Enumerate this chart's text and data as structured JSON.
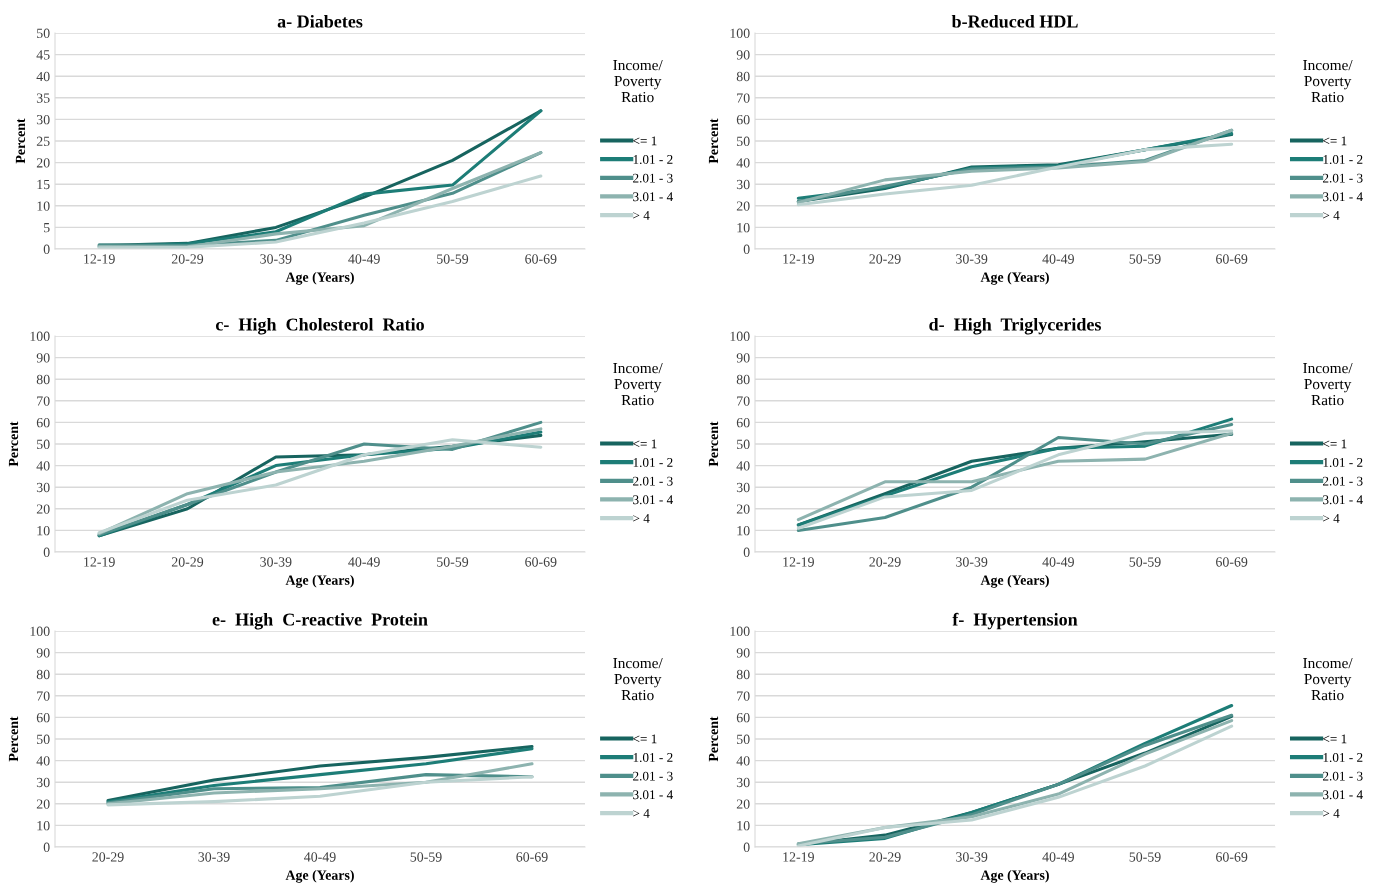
{
  "chart_data": [
    {
      "type": "line",
      "title": "a- Diabetes",
      "xlabel": "Age (Years)",
      "ylabel": "Percent",
      "legend_title": "Income/\nPoverty\nRatio",
      "legend": "right",
      "grid": "y",
      "categories": [
        "12-19",
        "20-29",
        "30-39",
        "40-49",
        "50-59",
        "60-69"
      ],
      "ylim": [
        0,
        50
      ],
      "yticks": [
        0,
        5,
        10,
        15,
        20,
        25,
        30,
        35,
        40,
        45,
        50
      ],
      "series": [
        {
          "name": "<= 1",
          "color": "#17645f",
          "values": [
            0.8,
            1.3,
            5,
            12,
            20.5,
            32
          ]
        },
        {
          "name": "1.01 - 2",
          "color": "#1d7d77",
          "values": [
            0.5,
            1.2,
            4,
            12.7,
            14.8,
            32
          ]
        },
        {
          "name": "2.01 - 3",
          "color": "#4f8f8b",
          "values": [
            1,
            0.8,
            2,
            7.8,
            12.9,
            22.3
          ]
        },
        {
          "name": "3.01 - 4",
          "color": "#8db3af",
          "values": [
            0.6,
            0.5,
            3.5,
            5.4,
            14,
            22.3
          ]
        },
        {
          "name": "> 4",
          "color": "#bdd3d1",
          "values": [
            0.3,
            0.4,
            1.6,
            6,
            11,
            16.9
          ]
        }
      ]
    },
    {
      "type": "line",
      "title": "b-Reduced HDL",
      "xlabel": "Age (Years)",
      "ylabel": "Percent",
      "legend_title": "Income/\nPoverty\nRatio",
      "legend": "right",
      "grid": "y",
      "categories": [
        "12-19",
        "20-29",
        "30-39",
        "40-49",
        "50-59",
        "60-69"
      ],
      "ylim": [
        0,
        100
      ],
      "yticks": [
        0,
        10,
        20,
        30,
        40,
        50,
        60,
        70,
        80,
        90,
        100
      ],
      "series": [
        {
          "name": "<= 1",
          "color": "#17645f",
          "values": [
            22,
            28,
            38,
            39,
            46,
            53
          ]
        },
        {
          "name": "1.01 - 2",
          "color": "#1d7d77",
          "values": [
            23.5,
            28.5,
            37.5,
            38.5,
            46,
            53.5
          ]
        },
        {
          "name": "2.01 - 3",
          "color": "#4f8f8b",
          "values": [
            22,
            29,
            37,
            38,
            41,
            55
          ]
        },
        {
          "name": "3.01 - 4",
          "color": "#8db3af",
          "values": [
            21.5,
            32,
            36,
            37.5,
            40.5,
            55
          ]
        },
        {
          "name": "> 4",
          "color": "#bdd3d1",
          "values": [
            20.5,
            25.5,
            29.5,
            38,
            46,
            48.5
          ]
        }
      ]
    },
    {
      "type": "line",
      "title": "c-  High  Cholesterol  Ratio",
      "xlabel": "Age (Years)",
      "ylabel": "Percent",
      "legend_title": "Income/\nPoverty\nRatio",
      "legend": "right",
      "grid": "y",
      "categories": [
        "12-19",
        "20-29",
        "30-39",
        "40-49",
        "50-59",
        "60-69"
      ],
      "ylim": [
        0,
        100
      ],
      "yticks": [
        0,
        10,
        20,
        30,
        40,
        50,
        60,
        70,
        80,
        90,
        100
      ],
      "series": [
        {
          "name": "<= 1",
          "color": "#17645f",
          "values": [
            7.5,
            20,
            44,
            45,
            49,
            54
          ]
        },
        {
          "name": "1.01 - 2",
          "color": "#1d7d77",
          "values": [
            7.5,
            22,
            40,
            45,
            48,
            55.5
          ]
        },
        {
          "name": "2.01 - 3",
          "color": "#4f8f8b",
          "values": [
            8,
            22,
            37,
            50,
            47.5,
            60
          ]
        },
        {
          "name": "3.01 - 4",
          "color": "#8db3af",
          "values": [
            8.5,
            27,
            37,
            42,
            49,
            57
          ]
        },
        {
          "name": "> 4",
          "color": "#bdd3d1",
          "values": [
            9,
            24,
            31,
            45,
            52,
            48.5
          ]
        }
      ]
    },
    {
      "type": "line",
      "title": "d-  High  Triglycerides",
      "xlabel": "Age (Years)",
      "ylabel": "Percent",
      "legend_title": "Income/\nPoverty\nRatio",
      "legend": "right",
      "grid": "y",
      "categories": [
        "12-19",
        "20-29",
        "30-39",
        "40-49",
        "50-59",
        "60-69"
      ],
      "ylim": [
        0,
        100
      ],
      "yticks": [
        0,
        10,
        20,
        30,
        40,
        50,
        60,
        70,
        80,
        90,
        100
      ],
      "series": [
        {
          "name": "<= 1",
          "color": "#17645f",
          "values": [
            12.5,
            27,
            42,
            48,
            51,
            54.5
          ]
        },
        {
          "name": "1.01 - 2",
          "color": "#1d7d77",
          "values": [
            12.5,
            26,
            39.5,
            48,
            49,
            61.5
          ]
        },
        {
          "name": "2.01 - 3",
          "color": "#4f8f8b",
          "values": [
            10,
            16,
            30,
            53,
            50,
            59
          ]
        },
        {
          "name": "3.01 - 4",
          "color": "#8db3af",
          "values": [
            15,
            32.5,
            32.5,
            42,
            43,
            55
          ]
        },
        {
          "name": "> 4",
          "color": "#bdd3d1",
          "values": [
            11,
            25.5,
            28.5,
            45,
            55,
            56
          ]
        }
      ]
    },
    {
      "type": "line",
      "title": "e-  High  C-reactive  Protein",
      "xlabel": "Age (Years)",
      "ylabel": "Percent",
      "legend_title": "Income/\nPoverty\nRatio",
      "legend": "right",
      "grid": "y",
      "categories": [
        "20-29",
        "30-39",
        "40-49",
        "50-59",
        "60-69"
      ],
      "ylim": [
        0,
        100
      ],
      "yticks": [
        0,
        10,
        20,
        30,
        40,
        50,
        60,
        70,
        80,
        90,
        100
      ],
      "series": [
        {
          "name": "<= 1",
          "color": "#17645f",
          "values": [
            21.5,
            31,
            37.5,
            41.5,
            46.5
          ]
        },
        {
          "name": "1.01 - 2",
          "color": "#1d7d77",
          "values": [
            21,
            28.5,
            33.5,
            38.5,
            45.5
          ]
        },
        {
          "name": "2.01 - 3",
          "color": "#4f8f8b",
          "values": [
            20.5,
            27,
            27.5,
            33.5,
            32.5
          ]
        },
        {
          "name": "3.01 - 4",
          "color": "#8db3af",
          "values": [
            20,
            25,
            27,
            30,
            38.5
          ]
        },
        {
          "name": "> 4",
          "color": "#bdd3d1",
          "values": [
            19.5,
            21,
            23.5,
            30,
            32.5
          ]
        }
      ]
    },
    {
      "type": "line",
      "title": "f-  Hypertension",
      "xlabel": "Age (Years)",
      "ylabel": "Percent",
      "legend_title": "Income/\nPoverty\nRatio",
      "legend": "right",
      "grid": "y",
      "categories": [
        "12-19",
        "20-29",
        "30-39",
        "40-49",
        "50-59",
        "60-69"
      ],
      "ylim": [
        0,
        100
      ],
      "yticks": [
        0,
        10,
        20,
        30,
        40,
        50,
        60,
        70,
        80,
        90,
        100
      ],
      "series": [
        {
          "name": "<= 1",
          "color": "#17645f",
          "values": [
            1,
            5.5,
            16,
            29,
            43.5,
            60.5
          ]
        },
        {
          "name": "1.01 - 2",
          "color": "#1d7d77",
          "values": [
            1,
            4,
            16,
            29,
            48,
            65.5
          ]
        },
        {
          "name": "2.01 - 3",
          "color": "#4f8f8b",
          "values": [
            1.5,
            4.5,
            15,
            29,
            47,
            61
          ]
        },
        {
          "name": "3.01 - 4",
          "color": "#8db3af",
          "values": [
            1.5,
            9,
            14,
            24.5,
            43,
            58.5
          ]
        },
        {
          "name": "> 4",
          "color": "#bdd3d1",
          "values": [
            0.5,
            9,
            12.5,
            23,
            37.5,
            56
          ]
        }
      ]
    }
  ]
}
